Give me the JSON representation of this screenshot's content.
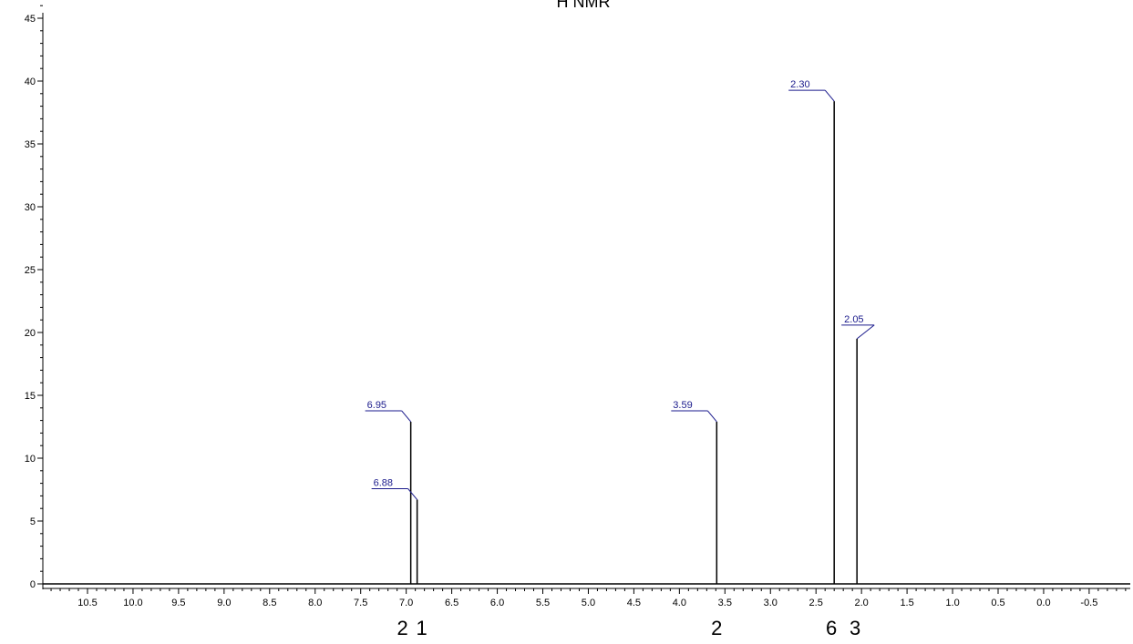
{
  "chart_data": {
    "type": "line",
    "title": "H NMR",
    "xlabel": "",
    "ylabel": "",
    "x_reversed": true,
    "xlim": [
      -0.9,
      11.0
    ],
    "ylim": [
      0,
      46
    ],
    "x_ticks": [
      10.5,
      10.0,
      9.5,
      9.0,
      8.5,
      8.0,
      7.5,
      7.0,
      6.5,
      6.0,
      5.5,
      5.0,
      4.5,
      4.0,
      3.5,
      3.0,
      2.5,
      2.0,
      1.5,
      1.0,
      0.5,
      0.0,
      -0.5
    ],
    "x_tick_labels": [
      "10.5",
      "10.0",
      "9.5",
      "9.0",
      "8.5",
      "8.0",
      "7.5",
      "7.0",
      "6.5",
      "6.0",
      "5.5",
      "5.0",
      "4.5",
      "4.0",
      "3.5",
      "3.0",
      "2.5",
      "2.0",
      "1.5",
      "1.0",
      "0.5",
      "0.0",
      "-0.5"
    ],
    "y_ticks": [
      0,
      5,
      10,
      15,
      20,
      25,
      30,
      35,
      40,
      45
    ],
    "y_tick_labels": [
      "0",
      "5",
      "10",
      "15",
      "20",
      "25",
      "30",
      "35",
      "40",
      "45"
    ],
    "peaks": [
      {
        "shift": 6.95,
        "label": "6.95",
        "intensity": 12.9
      },
      {
        "shift": 6.88,
        "label": "6.88",
        "intensity": 6.7
      },
      {
        "shift": 3.59,
        "label": "3.59",
        "intensity": 12.9
      },
      {
        "shift": 2.3,
        "label": "2.30",
        "intensity": 38.4
      },
      {
        "shift": 2.05,
        "label": "2.05",
        "intensity": 19.5
      }
    ],
    "integrals": [
      {
        "shift": 6.95,
        "label": "2"
      },
      {
        "shift": 6.88,
        "label": "1"
      },
      {
        "shift": 3.59,
        "label": "2"
      },
      {
        "shift": 2.3,
        "label": "6"
      },
      {
        "shift": 2.05,
        "label": "3"
      }
    ],
    "grid": false,
    "colors": {
      "spectrum": "#000000",
      "peak_label": "#1a1a8c",
      "axis": "#000000"
    }
  }
}
